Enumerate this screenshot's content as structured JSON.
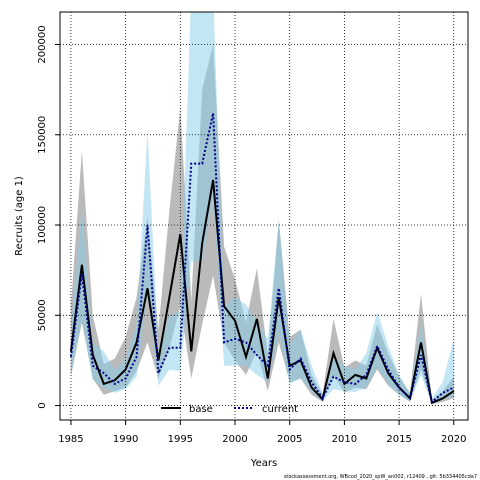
{
  "chart_data": {
    "type": "line",
    "xlabel": "Years",
    "ylabel": "Recruits (age 1)",
    "xlim": [
      1984,
      2021.3
    ],
    "ylim": [
      -8000,
      218000
    ],
    "x_ticks": [
      1985,
      1990,
      1995,
      2000,
      2005,
      2010,
      2015,
      2020
    ],
    "y_ticks": [
      0,
      50000,
      100000,
      150000,
      200000
    ],
    "grid": true,
    "legend": "bottom-center",
    "credit": "stockassessment.org, WBcod_2020_spW_an002, r12409 , git: 5b334405cda7",
    "series": [
      {
        "name": "base",
        "color": "#000000",
        "band_color": "#8c8c8c",
        "line_style": "solid",
        "x": [
          1985,
          1986,
          1987,
          1988,
          1989,
          1990,
          1991,
          1992,
          1993,
          1994,
          1995,
          1996,
          1997,
          1998,
          1999,
          2000,
          2001,
          2002,
          2003,
          2004,
          2005,
          2006,
          2007,
          2008,
          2009,
          2010,
          2011,
          2012,
          2013,
          2014,
          2015,
          2016,
          2017,
          2018,
          2019,
          2020
        ],
        "y": [
          30000,
          78000,
          28000,
          12000,
          14000,
          20000,
          35000,
          65000,
          25000,
          60000,
          95000,
          30000,
          90000,
          125000,
          55000,
          47000,
          27000,
          48000,
          15000,
          60000,
          22000,
          25000,
          10000,
          3500,
          29000,
          12000,
          17000,
          15000,
          32000,
          18000,
          10000,
          4000,
          35000,
          1500,
          4000,
          8000
        ],
        "lower": [
          16000,
          46000,
          15000,
          6000,
          8000,
          10000,
          19000,
          35000,
          15000,
          32000,
          55000,
          15000,
          45000,
          72000,
          35000,
          25000,
          17000,
          30000,
          8000,
          35000,
          13000,
          15000,
          6000,
          2000,
          17000,
          7000,
          10000,
          9000,
          20000,
          11000,
          6000,
          2000,
          20000,
          800,
          2000,
          4000
        ],
        "upper": [
          55000,
          141000,
          50000,
          23000,
          26000,
          38000,
          60000,
          105000,
          42000,
          108000,
          165000,
          58000,
          175000,
          200000,
          88000,
          70000,
          46000,
          76000,
          28000,
          103000,
          38000,
          42000,
          17000,
          6000,
          48000,
          21000,
          25000,
          22000,
          45000,
          29000,
          16000,
          7000,
          62000,
          3000,
          8000,
          16000
        ]
      },
      {
        "name": "current",
        "color": "#00008b",
        "band_color": "#87ceeb",
        "line_style": "dotted",
        "x": [
          1985,
          1986,
          1987,
          1988,
          1989,
          1990,
          1991,
          1992,
          1993,
          1994,
          1995,
          1996,
          1997,
          1998,
          1999,
          2000,
          2001,
          2002,
          2003,
          2004,
          2005,
          2006,
          2007,
          2008,
          2009,
          2010,
          2011,
          2012,
          2013,
          2014,
          2015,
          2016,
          2017,
          2018,
          2019,
          2020
        ],
        "y": [
          27000,
          73000,
          22000,
          18000,
          12000,
          15000,
          27000,
          100000,
          18000,
          32000,
          32000,
          134000,
          134000,
          162000,
          35000,
          37000,
          35000,
          28000,
          22000,
          65000,
          20000,
          26000,
          13000,
          4000,
          16000,
          13000,
          12000,
          17000,
          33000,
          20000,
          10000,
          4000,
          28000,
          2000,
          7000,
          10000
        ],
        "lower": [
          17000,
          48000,
          14000,
          10000,
          7000,
          9000,
          16000,
          63000,
          11000,
          20000,
          19000,
          80000,
          80000,
          115000,
          22000,
          22000,
          22000,
          17000,
          13000,
          40000,
          12000,
          15000,
          7500,
          2500,
          9000,
          8000,
          7500,
          10000,
          21000,
          12000,
          6000,
          2500,
          17000,
          1000,
          3500,
          5000
        ],
        "upper": [
          42000,
          110000,
          35000,
          30000,
          20000,
          25000,
          45000,
          152000,
          30000,
          50000,
          52000,
          230000,
          230000,
          230000,
          55000,
          60000,
          56000,
          46000,
          37000,
          102000,
          34000,
          42000,
          22000,
          7000,
          28000,
          22000,
          20000,
          29000,
          52000,
          33000,
          17000,
          7000,
          46000,
          4000,
          13000,
          37000
        ]
      }
    ]
  }
}
